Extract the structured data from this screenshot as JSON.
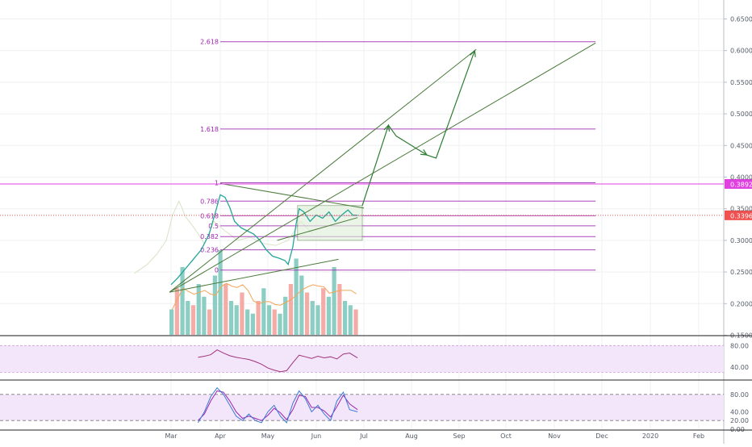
{
  "chart_data": {
    "type": "line",
    "title": "",
    "xlabel": "",
    "ylabel": "",
    "x_ticks": [
      "Mar",
      "Apr",
      "May",
      "Jun",
      "Jul",
      "Aug",
      "Sep",
      "Oct",
      "Nov",
      "Dec",
      "2020",
      "Feb"
    ],
    "y_ticks": [
      0.15,
      0.2,
      0.25,
      0.3,
      0.35,
      0.4,
      0.45,
      0.5,
      0.55,
      0.6,
      0.65
    ],
    "ylim": [
      0.15,
      0.67
    ],
    "price_series": {
      "name": "",
      "points": [
        [
          "2019-03-01",
          0.23
        ],
        [
          "2019-03-05",
          0.24
        ],
        [
          "2019-03-10",
          0.255
        ],
        [
          "2019-03-15",
          0.27
        ],
        [
          "2019-03-20",
          0.285
        ],
        [
          "2019-03-25",
          0.31
        ],
        [
          "2019-03-29",
          0.345
        ],
        [
          "2019-04-01",
          0.372
        ],
        [
          "2019-04-04",
          0.368
        ],
        [
          "2019-04-07",
          0.352
        ],
        [
          "2019-04-10",
          0.33
        ],
        [
          "2019-04-14",
          0.32
        ],
        [
          "2019-04-18",
          0.315
        ],
        [
          "2019-04-22",
          0.31
        ],
        [
          "2019-04-26",
          0.3
        ],
        [
          "2019-04-30",
          0.285
        ],
        [
          "2019-05-04",
          0.275
        ],
        [
          "2019-05-08",
          0.272
        ],
        [
          "2019-05-12",
          0.268
        ],
        [
          "2019-05-14",
          0.262
        ],
        [
          "2019-05-17",
          0.29
        ],
        [
          "2019-05-19",
          0.325
        ],
        [
          "2019-05-21",
          0.35
        ],
        [
          "2019-05-24",
          0.345
        ],
        [
          "2019-05-28",
          0.33
        ],
        [
          "2019-06-01",
          0.34
        ],
        [
          "2019-06-05",
          0.335
        ],
        [
          "2019-06-09",
          0.345
        ],
        [
          "2019-06-13",
          0.33
        ],
        [
          "2019-06-17",
          0.34
        ],
        [
          "2019-06-21",
          0.348
        ],
        [
          "2019-06-24",
          0.34
        ],
        [
          "2019-06-27",
          0.3396
        ]
      ]
    },
    "comparison_series": {
      "name": "",
      "color": "#d9e3c4",
      "points": [
        [
          "2019-02-06",
          0.248
        ],
        [
          "2019-02-14",
          0.262
        ],
        [
          "2019-02-20",
          0.278
        ],
        [
          "2019-02-26",
          0.3
        ],
        [
          "2019-03-02",
          0.34
        ],
        [
          "2019-03-06",
          0.362
        ],
        [
          "2019-03-10",
          0.338
        ],
        [
          "2019-03-16",
          0.318
        ],
        [
          "2019-03-22",
          0.295
        ],
        [
          "2019-03-28",
          0.33
        ],
        [
          "2019-04-04",
          0.315
        ],
        [
          "2019-04-12",
          0.3
        ],
        [
          "2019-04-20",
          0.305
        ],
        [
          "2019-04-28",
          0.295
        ],
        [
          "2019-05-06",
          0.292
        ],
        [
          "2019-05-14",
          0.3
        ],
        [
          "2019-05-22",
          0.33
        ],
        [
          "2019-05-30",
          0.31
        ]
      ]
    },
    "price_labels": [
      {
        "value": 0.3892,
        "text": "0.3892",
        "color": "#e040e0"
      },
      {
        "value": 0.3396,
        "text": "0.3396",
        "color": "#f05050"
      }
    ],
    "fibonacci": {
      "color": "#9c27b0",
      "levels": [
        {
          "label": "2.618",
          "value": 0.614
        },
        {
          "label": "1.618",
          "value": 0.476
        },
        {
          "label": "1",
          "value": 0.391
        },
        {
          "label": "0.786",
          "value": 0.362
        },
        {
          "label": "0.618",
          "value": 0.339
        },
        {
          "label": "0.5",
          "value": 0.323
        },
        {
          "label": "0.382",
          "value": 0.306
        },
        {
          "label": "0.236",
          "value": 0.285
        },
        {
          "label": "0",
          "value": 0.253
        }
      ]
    },
    "volume_bars": {
      "colors": {
        "up": "#7fc9bd",
        "down": "#f4a29c"
      },
      "values": [
        0.3,
        0.55,
        0.8,
        0.4,
        0.35,
        0.6,
        0.45,
        0.3,
        0.7,
        1.0,
        0.6,
        0.4,
        0.35,
        0.5,
        0.3,
        0.25,
        0.4,
        0.55,
        0.35,
        0.3,
        0.25,
        0.45,
        0.6,
        0.9,
        0.7,
        0.5,
        0.4,
        0.35,
        0.55,
        0.45,
        0.8,
        0.6,
        0.4,
        0.35,
        0.3
      ],
      "ma_color": "#f2a65a"
    },
    "rsi": {
      "y_ticks": [
        40.0,
        80.0
      ],
      "ylim": [
        20,
        85
      ],
      "line_color": "#a0337a",
      "band_color": "#f3e6fa",
      "values": [
        [
          "2019-03-18",
          58
        ],
        [
          "2019-03-22",
          60
        ],
        [
          "2019-03-26",
          63
        ],
        [
          "2019-03-30",
          72
        ],
        [
          "2019-04-03",
          66
        ],
        [
          "2019-04-07",
          61
        ],
        [
          "2019-04-11",
          58
        ],
        [
          "2019-04-15",
          56
        ],
        [
          "2019-04-19",
          54
        ],
        [
          "2019-04-23",
          50
        ],
        [
          "2019-04-27",
          45
        ],
        [
          "2019-05-01",
          38
        ],
        [
          "2019-05-05",
          34
        ],
        [
          "2019-05-09",
          31
        ],
        [
          "2019-05-13",
          33
        ],
        [
          "2019-05-17",
          48
        ],
        [
          "2019-05-21",
          62
        ],
        [
          "2019-05-25",
          59
        ],
        [
          "2019-05-29",
          56
        ],
        [
          "2019-06-02",
          60
        ],
        [
          "2019-06-06",
          57
        ],
        [
          "2019-06-10",
          59
        ],
        [
          "2019-06-14",
          55
        ],
        [
          "2019-06-18",
          64
        ],
        [
          "2019-06-22",
          66
        ],
        [
          "2019-06-27",
          57
        ]
      ]
    },
    "stoch": {
      "y_ticks": [
        0.0,
        20.0,
        40.0,
        80.0
      ],
      "ylim": [
        0,
        100
      ],
      "colors": {
        "k": "#3a7bd5",
        "d": "#9c27b0"
      },
      "band_color": "#f3e6fa",
      "k_values": [
        [
          "2019-03-18",
          15
        ],
        [
          "2019-03-22",
          40
        ],
        [
          "2019-03-26",
          75
        ],
        [
          "2019-03-30",
          95
        ],
        [
          "2019-04-03",
          80
        ],
        [
          "2019-04-07",
          55
        ],
        [
          "2019-04-11",
          30
        ],
        [
          "2019-04-15",
          20
        ],
        [
          "2019-04-19",
          35
        ],
        [
          "2019-04-23",
          20
        ],
        [
          "2019-04-27",
          15
        ],
        [
          "2019-05-01",
          40
        ],
        [
          "2019-05-05",
          55
        ],
        [
          "2019-05-09",
          30
        ],
        [
          "2019-05-13",
          15
        ],
        [
          "2019-05-17",
          60
        ],
        [
          "2019-05-21",
          88
        ],
        [
          "2019-05-25",
          70
        ],
        [
          "2019-05-29",
          40
        ],
        [
          "2019-06-02",
          55
        ],
        [
          "2019-06-06",
          35
        ],
        [
          "2019-06-10",
          20
        ],
        [
          "2019-06-14",
          65
        ],
        [
          "2019-06-18",
          85
        ],
        [
          "2019-06-22",
          45
        ],
        [
          "2019-06-27",
          40
        ]
      ],
      "d_values": [
        [
          "2019-03-18",
          20
        ],
        [
          "2019-03-22",
          35
        ],
        [
          "2019-03-26",
          65
        ],
        [
          "2019-03-30",
          88
        ],
        [
          "2019-04-03",
          85
        ],
        [
          "2019-04-07",
          65
        ],
        [
          "2019-04-11",
          40
        ],
        [
          "2019-04-15",
          25
        ],
        [
          "2019-04-19",
          30
        ],
        [
          "2019-04-23",
          25
        ],
        [
          "2019-04-27",
          20
        ],
        [
          "2019-05-01",
          32
        ],
        [
          "2019-05-05",
          48
        ],
        [
          "2019-05-09",
          38
        ],
        [
          "2019-05-13",
          22
        ],
        [
          "2019-05-17",
          45
        ],
        [
          "2019-05-21",
          78
        ],
        [
          "2019-05-25",
          75
        ],
        [
          "2019-05-29",
          50
        ],
        [
          "2019-06-02",
          50
        ],
        [
          "2019-06-06",
          42
        ],
        [
          "2019-06-10",
          28
        ],
        [
          "2019-06-14",
          52
        ],
        [
          "2019-06-18",
          78
        ],
        [
          "2019-06-22",
          58
        ],
        [
          "2019-06-27",
          45
        ]
      ]
    },
    "projection_arrow": {
      "color": "#2e7d32",
      "points": [
        [
          "2019-06-30",
          0.355
        ],
        [
          "2019-07-17",
          0.482
        ],
        [
          "2019-07-22",
          0.465
        ],
        [
          "2019-08-11",
          0.435
        ],
        [
          "2019-08-17",
          0.43
        ],
        [
          "2019-09-11",
          0.6
        ]
      ]
    },
    "channel_lines": {
      "color": "#4a7a3a",
      "lines": [
        [
          [
            "2019-02-28",
            0.218
          ],
          [
            "2019-09-12",
            0.602
          ]
        ],
        [
          [
            "2019-02-28",
            0.218
          ],
          [
            "2019-11-27",
            0.612
          ]
        ],
        [
          [
            "2019-04-01",
            0.39
          ],
          [
            "2019-07-01",
            0.351
          ]
        ],
        [
          [
            "2019-05-07",
            0.3
          ],
          [
            "2019-06-27",
            0.336
          ]
        ],
        [
          [
            "2019-02-28",
            0.218
          ],
          [
            "2019-06-15",
            0.27
          ]
        ]
      ]
    },
    "grid": true
  }
}
